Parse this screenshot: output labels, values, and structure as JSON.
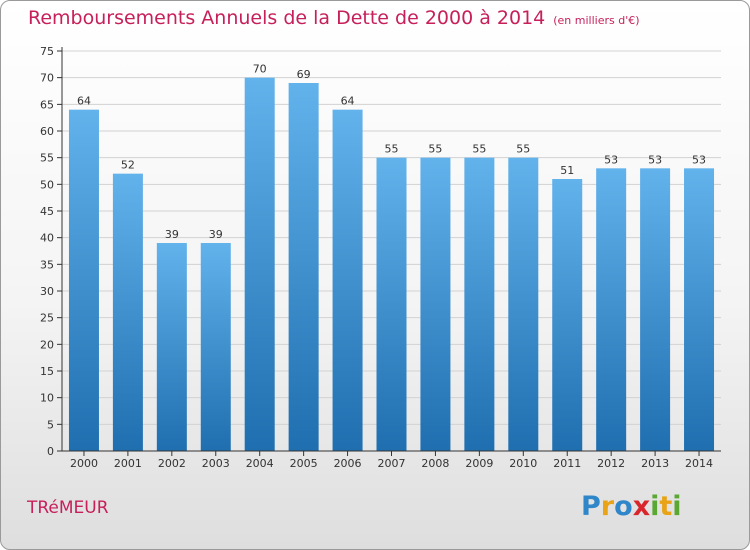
{
  "title": "Remboursements Annuels de la Dette de 2000 à 2014",
  "unit": "(en milliers d'€)",
  "place": "TRéMEUR",
  "brand": {
    "text": "Proxiti",
    "letters": [
      {
        "ch": "P",
        "color": "#2f86c8"
      },
      {
        "ch": "r",
        "color": "#e8a317"
      },
      {
        "ch": "o",
        "color": "#2f86c8"
      },
      {
        "ch": "x",
        "color": "#d9262c"
      },
      {
        "ch": "i",
        "color": "#5aa832"
      },
      {
        "ch": "t",
        "color": "#e8a317"
      },
      {
        "ch": "i",
        "color": "#5aa832"
      }
    ]
  },
  "colors": {
    "accent": "#c71f5a",
    "bar_top": "#62b2ec",
    "bar_bottom": "#1f6fb0",
    "grid": "#d2d2d2",
    "axis": "#333333"
  },
  "chart_data": {
    "type": "bar",
    "categories": [
      "2000",
      "2001",
      "2002",
      "2003",
      "2004",
      "2005",
      "2006",
      "2007",
      "2008",
      "2009",
      "2010",
      "2011",
      "2012",
      "2013",
      "2014"
    ],
    "values": [
      64,
      52,
      39,
      39,
      70,
      69,
      64,
      55,
      55,
      55,
      55,
      51,
      53,
      53,
      53
    ],
    "data_labels": [
      "64",
      "52",
      "39",
      "39",
      "70",
      "69",
      "64",
      "55",
      "55",
      "55",
      "55",
      "51",
      "53",
      "53",
      "53"
    ],
    "ylim": [
      0,
      75
    ],
    "yticks": [
      0,
      5,
      10,
      15,
      20,
      25,
      30,
      35,
      40,
      45,
      50,
      55,
      60,
      65,
      70,
      75
    ],
    "grid": true,
    "legend": "none"
  }
}
